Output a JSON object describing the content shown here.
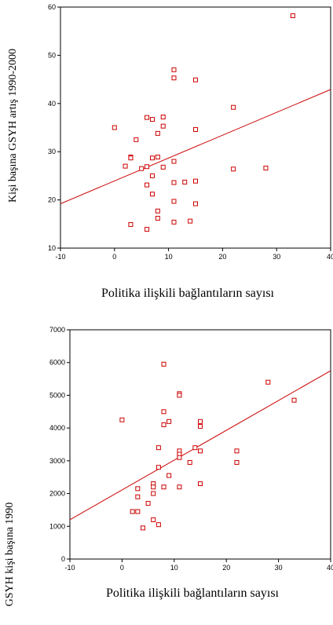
{
  "chart_data": [
    {
      "type": "scatter",
      "xlabel": "Politika ilişkili bağlantıların sayısı",
      "ylabel": "Kişi başına GSYH artış 1990-2000",
      "xlim": [
        -10,
        40
      ],
      "ylim": [
        10,
        60
      ],
      "xticks": [
        "-10",
        "0",
        "10",
        "20",
        "30",
        "40"
      ],
      "yticks": [
        "10",
        "20",
        "30",
        "40",
        "50",
        "60"
      ],
      "marker_color": "#cc0000",
      "fit_line": [
        [
          -10,
          19.2
        ],
        [
          40,
          42.9
        ]
      ],
      "points": [
        [
          0,
          35.0
        ],
        [
          2,
          27.0
        ],
        [
          3,
          28.9
        ],
        [
          3,
          28.7
        ],
        [
          3,
          14.9
        ],
        [
          4,
          32.5
        ],
        [
          5,
          26.5
        ],
        [
          6,
          26.9
        ],
        [
          6,
          23.1
        ],
        [
          6,
          37.1
        ],
        [
          6,
          13.9
        ],
        [
          7,
          36.7
        ],
        [
          7,
          28.7
        ],
        [
          7,
          25.0
        ],
        [
          7,
          21.2
        ],
        [
          8,
          33.8
        ],
        [
          8,
          28.9
        ],
        [
          8,
          17.7
        ],
        [
          8,
          16.2
        ],
        [
          9,
          37.2
        ],
        [
          9,
          35.3
        ],
        [
          9,
          26.8
        ],
        [
          11,
          47.0
        ],
        [
          11,
          45.3
        ],
        [
          11,
          28.0
        ],
        [
          11,
          23.6
        ],
        [
          11,
          19.7
        ],
        [
          11,
          15.4
        ],
        [
          13,
          23.7
        ],
        [
          14,
          15.6
        ],
        [
          15,
          44.9
        ],
        [
          15,
          34.6
        ],
        [
          15,
          23.9
        ],
        [
          15,
          19.2
        ],
        [
          22,
          39.2
        ],
        [
          22,
          26.4
        ],
        [
          28,
          26.6
        ],
        [
          33,
          58.2
        ]
      ]
    },
    {
      "type": "scatter",
      "xlabel": "Politika ilişkili bağlantıların sayısı",
      "ylabel": "GSYH kişi başına 1990",
      "xlim": [
        -10,
        40
      ],
      "ylim": [
        0,
        7000
      ],
      "xticks": [
        "-10",
        "0",
        "10",
        "20",
        "30",
        "40"
      ],
      "yticks": [
        "0",
        "1000",
        "2000",
        "3000",
        "4000",
        "5000",
        "6000",
        "7000"
      ],
      "marker_color": "#cc0000",
      "fit_line": [
        [
          -10,
          1200
        ],
        [
          40,
          5750
        ]
      ],
      "points": [
        [
          0,
          4250
        ],
        [
          2,
          1450
        ],
        [
          3,
          1450
        ],
        [
          3,
          2150
        ],
        [
          3,
          1900
        ],
        [
          4,
          950
        ],
        [
          5,
          1700
        ],
        [
          6,
          2300
        ],
        [
          6,
          2200
        ],
        [
          6,
          2000
        ],
        [
          6,
          1200
        ],
        [
          7,
          3400
        ],
        [
          7,
          2800
        ],
        [
          7,
          1050
        ],
        [
          8,
          5950
        ],
        [
          8,
          4500
        ],
        [
          8,
          4100
        ],
        [
          8,
          2200
        ],
        [
          9,
          4200
        ],
        [
          9,
          2550
        ],
        [
          11,
          5050
        ],
        [
          11,
          5000
        ],
        [
          11,
          3300
        ],
        [
          11,
          3200
        ],
        [
          11,
          3100
        ],
        [
          11,
          2200
        ],
        [
          13,
          2950
        ],
        [
          14,
          3400
        ],
        [
          15,
          4200
        ],
        [
          15,
          4050
        ],
        [
          15,
          3300
        ],
        [
          15,
          2300
        ],
        [
          22,
          3300
        ],
        [
          22,
          2950
        ],
        [
          28,
          5400
        ],
        [
          33,
          4850
        ]
      ]
    }
  ]
}
